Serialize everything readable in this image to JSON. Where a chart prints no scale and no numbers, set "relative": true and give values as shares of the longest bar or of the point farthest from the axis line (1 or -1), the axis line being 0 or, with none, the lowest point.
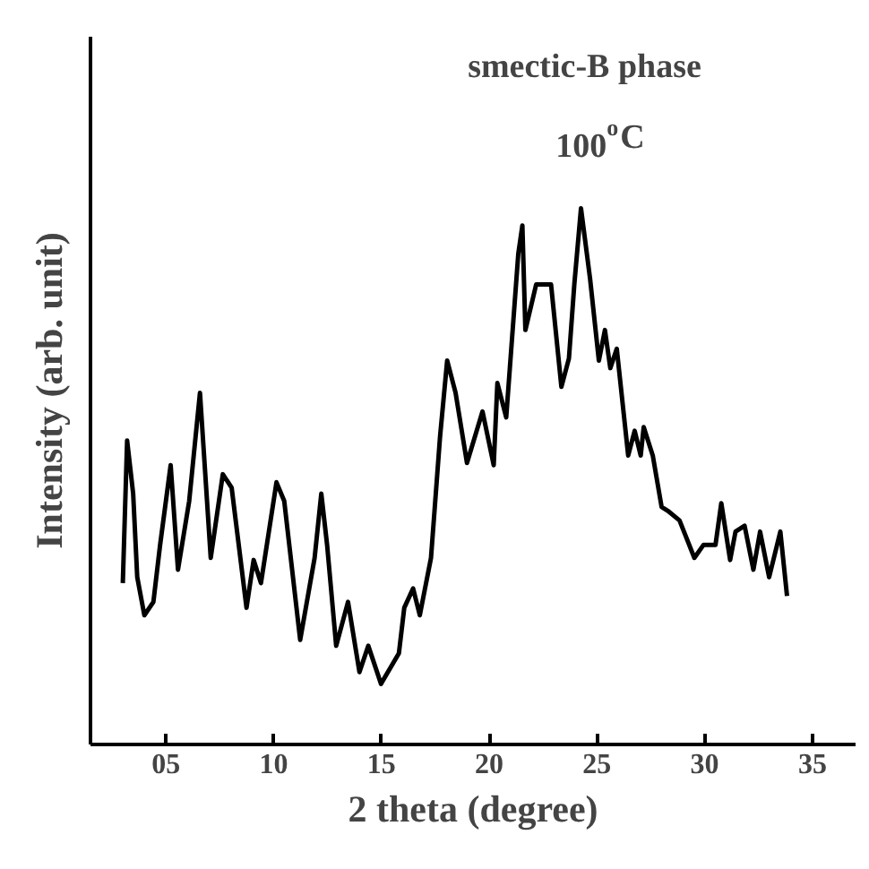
{
  "chart_data": {
    "type": "line",
    "relative": true,
    "xlabel": "2 theta (degree)",
    "ylabel": "Intensity (arb. unit)",
    "annotations": [
      "smectic-B phase",
      "100$^{o}$C"
    ],
    "color": "#000000",
    "xlim": [
      1.5,
      37
    ],
    "xticks": [
      {
        "value": 5,
        "label": "05"
      },
      10,
      15,
      20,
      25,
      30,
      35
    ],
    "tick_labels": "x",
    "grid": false,
    "x": [
      3.0,
      3.2,
      3.48,
      3.67,
      4.0,
      4.42,
      4.73,
      5.22,
      5.56,
      6.08,
      6.58,
      7.08,
      7.64,
      8.05,
      8.74,
      9.07,
      9.41,
      10.13,
      10.49,
      11.23,
      11.9,
      12.21,
      12.48,
      12.9,
      13.45,
      13.98,
      14.39,
      14.98,
      15.81,
      16.06,
      16.47,
      16.78,
      17.3,
      17.72,
      18.05,
      18.44,
      18.97,
      19.69,
      20.21,
      20.38,
      20.79,
      21.35,
      21.54,
      21.68,
      22.18,
      22.87,
      23.35,
      23.7,
      23.95,
      24.26,
      24.68,
      25.09,
      25.37,
      25.62,
      25.92,
      26.45,
      26.75,
      27.03,
      27.17,
      27.59,
      28.0,
      28.28,
      28.83,
      29.52,
      29.94,
      30.5,
      30.77,
      31.18,
      31.43,
      31.85,
      32.26,
      32.57,
      32.99,
      33.51,
      33.82
    ],
    "values": [
      0.301,
      0.567,
      0.468,
      0.312,
      0.241,
      0.266,
      0.372,
      0.521,
      0.326,
      0.454,
      0.656,
      0.348,
      0.504,
      0.479,
      0.255,
      0.344,
      0.301,
      0.489,
      0.454,
      0.195,
      0.348,
      0.468,
      0.372,
      0.184,
      0.266,
      0.135,
      0.184,
      0.113,
      0.17,
      0.255,
      0.291,
      0.241,
      0.348,
      0.574,
      0.716,
      0.656,
      0.525,
      0.621,
      0.521,
      0.674,
      0.61,
      0.915,
      0.968,
      0.773,
      0.858,
      0.858,
      0.667,
      0.72,
      0.858,
      1.0,
      0.869,
      0.716,
      0.773,
      0.702,
      0.738,
      0.539,
      0.585,
      0.539,
      0.592,
      0.539,
      0.443,
      0.436,
      0.418,
      0.348,
      0.372,
      0.372,
      0.45,
      0.344,
      0.397,
      0.408,
      0.326,
      0.397,
      0.312,
      0.397,
      0.277
    ]
  }
}
